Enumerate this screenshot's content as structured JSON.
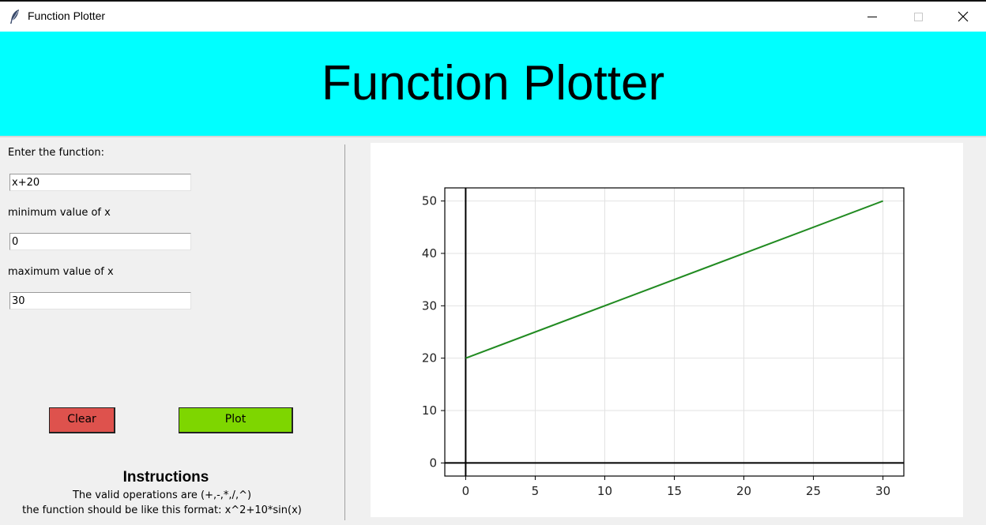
{
  "window": {
    "title": "Function Plotter",
    "icon": "feather-icon",
    "controls": [
      "minimize-icon",
      "maximize-icon",
      "close-icon"
    ]
  },
  "banner": {
    "title": "Function Plotter",
    "background": "#00ffff"
  },
  "form": {
    "function_label": "Enter the function:",
    "function_value": "x+20",
    "min_label": "minimum value of x",
    "min_value": "0",
    "max_label": "maximum value of x",
    "max_value": "30"
  },
  "buttons": {
    "clear_label": "Clear",
    "clear_color": "#de524d",
    "plot_label": "Plot",
    "plot_color": "#7ed600"
  },
  "instructions": {
    "title": "Instructions",
    "line1": "The valid operations are (+,-,*,/,^)",
    "line2": "the function should be like this format: x^2+10*sin(x)"
  },
  "chart_data": {
    "type": "line",
    "title": "",
    "xlabel": "",
    "ylabel": "",
    "xlim": [
      -1.5,
      31.5
    ],
    "ylim": [
      -2.5,
      52.5
    ],
    "xticks": [
      0,
      5,
      10,
      15,
      20,
      25,
      30
    ],
    "yticks": [
      0,
      10,
      20,
      30,
      40,
      50
    ],
    "grid": true,
    "axis_lines": {
      "x_axis_at_y": 0,
      "y_axis_at_x": 0
    },
    "series": [
      {
        "x": [
          0,
          30
        ],
        "y": [
          20,
          50
        ],
        "color": "#228b22"
      }
    ]
  }
}
